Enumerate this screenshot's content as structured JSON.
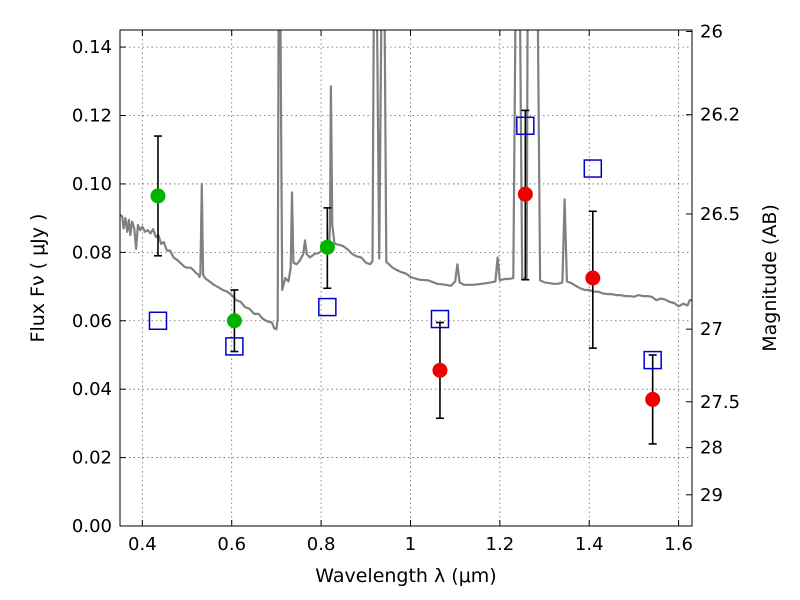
{
  "chart_data": {
    "type": "scatter",
    "xlabel": "Wavelength  λ (μm)",
    "ylabel": "Flux  Fν  ( μJy )",
    "y2label": "Magnitude (AB)",
    "xlim": [
      0.35,
      1.63
    ],
    "ylim": [
      0,
      0.145
    ],
    "grid": true,
    "x_ticks": [
      {
        "value": 0.4,
        "label": "0.4"
      },
      {
        "value": 0.6,
        "label": "0.6"
      },
      {
        "value": 0.8,
        "label": "0.8"
      },
      {
        "value": 1.0,
        "label": "1"
      },
      {
        "value": 1.2,
        "label": "1.2"
      },
      {
        "value": 1.4,
        "label": "1.4"
      },
      {
        "value": 1.6,
        "label": "1.6"
      }
    ],
    "y_ticks": [
      {
        "value": 0.0,
        "label": "0.00"
      },
      {
        "value": 0.02,
        "label": "0.02"
      },
      {
        "value": 0.04,
        "label": "0.04"
      },
      {
        "value": 0.06,
        "label": "0.06"
      },
      {
        "value": 0.08,
        "label": "0.08"
      },
      {
        "value": 0.1,
        "label": "0.10"
      },
      {
        "value": 0.12,
        "label": "0.12"
      },
      {
        "value": 0.14,
        "label": "0.14"
      }
    ],
    "y2_ticks": [
      {
        "mag": 26,
        "label": "26"
      },
      {
        "mag": 26.2,
        "label": "26.2"
      },
      {
        "mag": 26.5,
        "label": "26.5"
      },
      {
        "mag": 27,
        "label": "27"
      },
      {
        "mag": 27.5,
        "label": "27.5"
      },
      {
        "mag": 28,
        "label": "28"
      },
      {
        "mag": 29,
        "label": "29"
      }
    ],
    "series": [
      {
        "marker": "circle",
        "color": "#00b300",
        "points": [
          {
            "x": 0.435,
            "y": 0.0965,
            "err": [
              0.079,
              0.114
            ]
          },
          {
            "x": 0.606,
            "y": 0.06,
            "err": [
              0.051,
              0.069
            ]
          },
          {
            "x": 0.814,
            "y": 0.0815,
            "err": [
              0.0695,
              0.093
            ]
          }
        ]
      },
      {
        "marker": "circle",
        "color": "#ee0000",
        "points": [
          {
            "x": 1.066,
            "y": 0.0455,
            "err": [
              0.0315,
              0.0595
            ]
          },
          {
            "x": 1.257,
            "y": 0.097,
            "err": [
              0.072,
              0.1215
            ]
          },
          {
            "x": 1.408,
            "y": 0.0725,
            "err": [
              0.052,
              0.092
            ]
          },
          {
            "x": 1.542,
            "y": 0.037,
            "err": [
              0.024,
              0.05
            ]
          }
        ]
      },
      {
        "marker": "open-square",
        "color": "#0000cc",
        "points": [
          {
            "x": 0.435,
            "y": 0.06
          },
          {
            "x": 0.606,
            "y": 0.0525
          },
          {
            "x": 0.814,
            "y": 0.064
          },
          {
            "x": 1.066,
            "y": 0.0605
          },
          {
            "x": 1.257,
            "y": 0.117
          },
          {
            "x": 1.408,
            "y": 0.1045
          },
          {
            "x": 1.542,
            "y": 0.0485
          }
        ]
      }
    ],
    "model_spectrum": {
      "color": "#808080",
      "points": [
        [
          0.35,
          0.091
        ],
        [
          0.355,
          0.0905
        ],
        [
          0.358,
          0.087
        ],
        [
          0.362,
          0.09
        ],
        [
          0.366,
          0.086
        ],
        [
          0.37,
          0.0895
        ],
        [
          0.373,
          0.085
        ],
        [
          0.377,
          0.089
        ],
        [
          0.382,
          0.087
        ],
        [
          0.386,
          0.081
        ],
        [
          0.39,
          0.088
        ],
        [
          0.395,
          0.0865
        ],
        [
          0.4,
          0.0875
        ],
        [
          0.406,
          0.086
        ],
        [
          0.412,
          0.0865
        ],
        [
          0.418,
          0.0855
        ],
        [
          0.424,
          0.0868
        ],
        [
          0.43,
          0.0845
        ],
        [
          0.436,
          0.085
        ],
        [
          0.442,
          0.0825
        ],
        [
          0.448,
          0.083
        ],
        [
          0.455,
          0.0805
        ],
        [
          0.462,
          0.0805
        ],
        [
          0.47,
          0.0785
        ],
        [
          0.478,
          0.0778
        ],
        [
          0.486,
          0.0768
        ],
        [
          0.494,
          0.0758
        ],
        [
          0.5,
          0.0755
        ],
        [
          0.508,
          0.0755
        ],
        [
          0.514,
          0.0748
        ],
        [
          0.52,
          0.074
        ],
        [
          0.525,
          0.0735
        ],
        [
          0.528,
          0.0728
        ],
        [
          0.53,
          0.0738
        ],
        [
          0.533,
          0.1
        ],
        [
          0.536,
          0.0735
        ],
        [
          0.54,
          0.0725
        ],
        [
          0.55,
          0.0715
        ],
        [
          0.56,
          0.0705
        ],
        [
          0.57,
          0.0698
        ],
        [
          0.58,
          0.069
        ],
        [
          0.59,
          0.0685
        ],
        [
          0.6,
          0.0675
        ],
        [
          0.61,
          0.066
        ],
        [
          0.62,
          0.0655
        ],
        [
          0.63,
          0.064
        ],
        [
          0.64,
          0.0635
        ],
        [
          0.65,
          0.062
        ],
        [
          0.66,
          0.062
        ],
        [
          0.67,
          0.0605
        ],
        [
          0.68,
          0.0598
        ],
        [
          0.69,
          0.0595
        ],
        [
          0.695,
          0.0578
        ],
        [
          0.7,
          0.0575
        ],
        [
          0.703,
          0.0605
        ],
        [
          0.705,
          0.15
        ],
        [
          0.709,
          0.15
        ],
        [
          0.713,
          0.069
        ],
        [
          0.72,
          0.0725
        ],
        [
          0.727,
          0.0715
        ],
        [
          0.732,
          0.0755
        ],
        [
          0.735,
          0.0975
        ],
        [
          0.738,
          0.077
        ],
        [
          0.745,
          0.0765
        ],
        [
          0.752,
          0.0775
        ],
        [
          0.76,
          0.0795
        ],
        [
          0.764,
          0.0835
        ],
        [
          0.768,
          0.0795
        ],
        [
          0.775,
          0.0785
        ],
        [
          0.785,
          0.0795
        ],
        [
          0.795,
          0.0798
        ],
        [
          0.805,
          0.081
        ],
        [
          0.81,
          0.0815
        ],
        [
          0.815,
          0.082
        ],
        [
          0.818,
          0.0815
        ],
        [
          0.82,
          0.088
        ],
        [
          0.822,
          0.1285
        ],
        [
          0.825,
          0.088
        ],
        [
          0.83,
          0.0825
        ],
        [
          0.84,
          0.0822
        ],
        [
          0.85,
          0.0818
        ],
        [
          0.86,
          0.0808
        ],
        [
          0.87,
          0.0795
        ],
        [
          0.88,
          0.0788
        ],
        [
          0.89,
          0.0785
        ],
        [
          0.9,
          0.077
        ],
        [
          0.91,
          0.0765
        ],
        [
          0.915,
          0.0775
        ],
        [
          0.918,
          0.15
        ],
        [
          0.925,
          0.15
        ],
        [
          0.93,
          0.0782
        ],
        [
          0.935,
          0.15
        ],
        [
          0.942,
          0.15
        ],
        [
          0.946,
          0.0772
        ],
        [
          0.952,
          0.0765
        ],
        [
          0.96,
          0.0755
        ],
        [
          0.97,
          0.0748
        ],
        [
          0.98,
          0.0742
        ],
        [
          0.99,
          0.0738
        ],
        [
          1.0,
          0.0728
        ],
        [
          1.02,
          0.072
        ],
        [
          1.04,
          0.0718
        ],
        [
          1.06,
          0.0708
        ],
        [
          1.08,
          0.0705
        ],
        [
          1.09,
          0.0702
        ],
        [
          1.1,
          0.0715
        ],
        [
          1.105,
          0.0765
        ],
        [
          1.11,
          0.0712
        ],
        [
          1.12,
          0.0705
        ],
        [
          1.14,
          0.0705
        ],
        [
          1.16,
          0.0708
        ],
        [
          1.18,
          0.0712
        ],
        [
          1.19,
          0.0715
        ],
        [
          1.195,
          0.0785
        ],
        [
          1.2,
          0.0718
        ],
        [
          1.21,
          0.0722
        ],
        [
          1.22,
          0.0722
        ],
        [
          1.23,
          0.0725
        ],
        [
          1.235,
          0.15
        ],
        [
          1.245,
          0.15
        ],
        [
          1.25,
          0.0722
        ],
        [
          1.26,
          0.0725
        ],
        [
          1.262,
          0.15
        ],
        [
          1.27,
          0.15
        ],
        [
          1.275,
          0.15
        ],
        [
          1.285,
          0.15
        ],
        [
          1.29,
          0.0718
        ],
        [
          1.3,
          0.0712
        ],
        [
          1.31,
          0.071
        ],
        [
          1.32,
          0.0708
        ],
        [
          1.33,
          0.0708
        ],
        [
          1.34,
          0.0712
        ],
        [
          1.345,
          0.0955
        ],
        [
          1.35,
          0.0715
        ],
        [
          1.36,
          0.071
        ],
        [
          1.37,
          0.0702
        ],
        [
          1.38,
          0.0695
        ],
        [
          1.39,
          0.069
        ],
        [
          1.4,
          0.069
        ],
        [
          1.41,
          0.0685
        ],
        [
          1.42,
          0.0685
        ],
        [
          1.43,
          0.068
        ],
        [
          1.44,
          0.0678
        ],
        [
          1.45,
          0.0678
        ],
        [
          1.46,
          0.0675
        ],
        [
          1.47,
          0.0675
        ],
        [
          1.48,
          0.0672
        ],
        [
          1.49,
          0.0672
        ],
        [
          1.5,
          0.067
        ],
        [
          1.51,
          0.0675
        ],
        [
          1.52,
          0.0672
        ],
        [
          1.53,
          0.0672
        ],
        [
          1.54,
          0.067
        ],
        [
          1.55,
          0.066
        ],
        [
          1.56,
          0.0665
        ],
        [
          1.57,
          0.0662
        ],
        [
          1.58,
          0.0655
        ],
        [
          1.59,
          0.0652
        ],
        [
          1.6,
          0.0642
        ],
        [
          1.61,
          0.065
        ],
        [
          1.62,
          0.0645
        ],
        [
          1.625,
          0.066
        ],
        [
          1.63,
          0.066
        ]
      ]
    }
  }
}
